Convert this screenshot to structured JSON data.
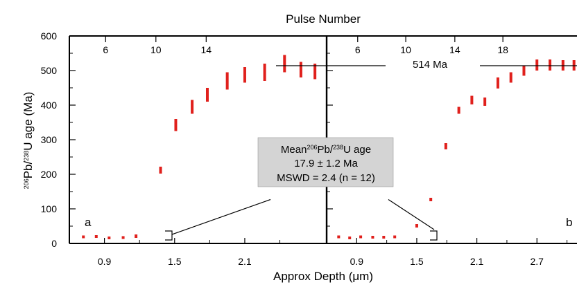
{
  "chart_data": {
    "type": "scatter",
    "top_axis_title": "Pulse Number",
    "xlabel_prefix": "Approx Depth (",
    "xlabel_mu": "μ",
    "xlabel_suffix": "m)",
    "ylabel": {
      "sup1": "206",
      "part1": "Pb/",
      "sup2": "238",
      "part2": "U age (Ma)"
    },
    "ylim": [
      0,
      600
    ],
    "y_ticks": [
      0,
      100,
      200,
      300,
      400,
      500,
      600
    ],
    "color": "#e0201c",
    "plateau_label": "514 Ma",
    "plateau_value": 514,
    "annotation": {
      "line1_prefix": "Mean",
      "sup1": "206",
      "mid1": "Pb/",
      "sup2": "238",
      "line1_suffix": "U age",
      "line2": "17.9 ± 1.2 Ma",
      "line3": "MSWD = 2.4 (n = 12)"
    },
    "panels": [
      {
        "label": "a",
        "xlim": [
          0.6,
          2.8
        ],
        "x_ticks": [
          0.9,
          1.5,
          2.1
        ],
        "pulse_ticks": [
          {
            "label": "6",
            "depth": 0.91
          },
          {
            "label": "10",
            "depth": 1.34
          },
          {
            "label": "14",
            "depth": 1.77
          }
        ],
        "points": [
          {
            "x": 0.72,
            "lo": 15,
            "hi": 23
          },
          {
            "x": 0.83,
            "lo": 16,
            "hi": 24
          },
          {
            "x": 0.94,
            "lo": 12,
            "hi": 20
          },
          {
            "x": 1.06,
            "lo": 13,
            "hi": 21
          },
          {
            "x": 1.17,
            "lo": 16,
            "hi": 26
          },
          {
            "x": 1.38,
            "lo": 202,
            "hi": 222
          },
          {
            "x": 1.51,
            "lo": 325,
            "hi": 360
          },
          {
            "x": 1.65,
            "lo": 375,
            "hi": 415
          },
          {
            "x": 1.78,
            "lo": 410,
            "hi": 450
          },
          {
            "x": 1.95,
            "lo": 445,
            "hi": 495
          },
          {
            "x": 2.1,
            "lo": 465,
            "hi": 510
          },
          {
            "x": 2.27,
            "lo": 470,
            "hi": 520
          },
          {
            "x": 2.44,
            "lo": 495,
            "hi": 545
          },
          {
            "x": 2.58,
            "lo": 480,
            "hi": 525
          },
          {
            "x": 2.7,
            "lo": 475,
            "hi": 520
          }
        ]
      },
      {
        "label": "b",
        "xlim": [
          0.6,
          3.1
        ],
        "x_ticks": [
          0.9,
          1.5,
          2.1,
          2.7
        ],
        "pulse_ticks": [
          {
            "label": "6",
            "depth": 0.91
          },
          {
            "label": "10",
            "depth": 1.39
          },
          {
            "label": "14",
            "depth": 1.88
          },
          {
            "label": "18",
            "depth": 2.36
          }
        ],
        "points": [
          {
            "x": 0.72,
            "lo": 15,
            "hi": 23
          },
          {
            "x": 0.83,
            "lo": 12,
            "hi": 20
          },
          {
            "x": 0.94,
            "lo": 15,
            "hi": 23
          },
          {
            "x": 1.06,
            "lo": 14,
            "hi": 22
          },
          {
            "x": 1.17,
            "lo": 14,
            "hi": 22
          },
          {
            "x": 1.28,
            "lo": 15,
            "hi": 23
          },
          {
            "x": 1.5,
            "lo": 46,
            "hi": 56
          },
          {
            "x": 1.64,
            "lo": 122,
            "hi": 132
          },
          {
            "x": 1.79,
            "lo": 272,
            "hi": 290
          },
          {
            "x": 1.92,
            "lo": 375,
            "hi": 395
          },
          {
            "x": 2.05,
            "lo": 402,
            "hi": 427
          },
          {
            "x": 2.18,
            "lo": 398,
            "hi": 422
          },
          {
            "x": 2.31,
            "lo": 448,
            "hi": 480
          },
          {
            "x": 2.44,
            "lo": 465,
            "hi": 495
          },
          {
            "x": 2.57,
            "lo": 485,
            "hi": 515
          },
          {
            "x": 2.7,
            "lo": 500,
            "hi": 532
          },
          {
            "x": 2.83,
            "lo": 500,
            "hi": 532
          },
          {
            "x": 2.96,
            "lo": 500,
            "hi": 530
          },
          {
            "x": 3.07,
            "lo": 500,
            "hi": 530
          }
        ]
      }
    ]
  }
}
